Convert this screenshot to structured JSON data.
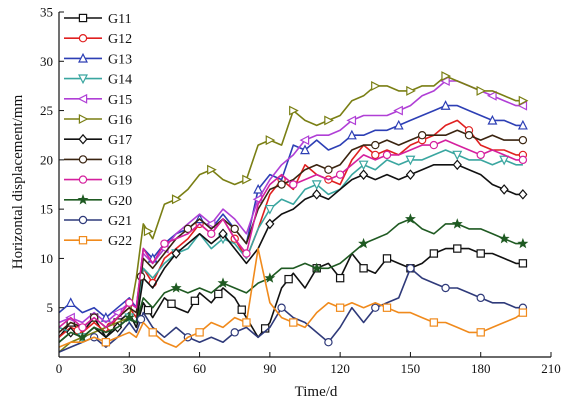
{
  "chart_data": {
    "type": "line",
    "xlabel": "Time/d",
    "ylabel": "Horizontal displacement/mm",
    "xlim": [
      0,
      210
    ],
    "ylim": [
      0,
      35
    ],
    "xticks": [
      0,
      30,
      60,
      90,
      120,
      150,
      180,
      210
    ],
    "yticks": [
      5,
      10,
      15,
      20,
      25,
      30,
      35
    ],
    "grid": false,
    "legend_position": "top-left",
    "series": [
      {
        "name": "G11",
        "color": "#111111",
        "marker": "square",
        "x": [
          0,
          5,
          10,
          15,
          20,
          25,
          30,
          33,
          36,
          40,
          45,
          50,
          55,
          60,
          65,
          70,
          75,
          80,
          85,
          90,
          95,
          100,
          105,
          110,
          115,
          120,
          125,
          130,
          135,
          140,
          145,
          150,
          155,
          160,
          165,
          170,
          175,
          180,
          185,
          190,
          195,
          198
        ],
        "y": [
          2.0,
          3.5,
          2.5,
          4.0,
          2.0,
          3.5,
          4.5,
          3.0,
          5.5,
          4.0,
          6.0,
          5.0,
          4.5,
          6.5,
          5.5,
          7.0,
          6.0,
          4.0,
          2.0,
          3.5,
          7.0,
          8.5,
          7.0,
          9.0,
          9.5,
          8.0,
          10.5,
          9.0,
          8.5,
          10.0,
          9.5,
          9.0,
          9.5,
          10.5,
          11.0,
          11.0,
          11.0,
          10.5,
          10.5,
          10.0,
          9.5,
          9.5
        ],
        "markers_x": [
          5,
          15,
          25,
          38,
          48,
          58,
          68,
          78,
          88,
          98,
          110,
          120,
          130,
          140,
          150,
          160,
          170,
          180,
          198
        ]
      },
      {
        "name": "G12",
        "color": "#e02020",
        "marker": "circle",
        "x": [
          0,
          5,
          10,
          15,
          20,
          25,
          30,
          33,
          36,
          40,
          45,
          50,
          55,
          60,
          65,
          70,
          75,
          80,
          85,
          90,
          95,
          100,
          105,
          110,
          115,
          120,
          125,
          130,
          135,
          140,
          145,
          150,
          155,
          160,
          165,
          170,
          175,
          180,
          185,
          190,
          195,
          198
        ],
        "y": [
          2.0,
          3.0,
          2.5,
          3.5,
          2.5,
          4.0,
          5.0,
          4.0,
          9.0,
          7.5,
          10.0,
          11.0,
          12.0,
          13.5,
          12.5,
          14.0,
          12.0,
          10.0,
          13.0,
          16.5,
          18.0,
          17.0,
          19.5,
          18.5,
          18.0,
          17.5,
          20.0,
          21.5,
          20.5,
          21.0,
          20.5,
          21.5,
          22.0,
          22.5,
          23.5,
          24.0,
          23.0,
          21.5,
          21.0,
          21.0,
          20.5,
          20.5
        ],
        "markers_x": [
          8,
          22,
          40,
          60,
          75,
          95,
          115,
          135,
          155,
          175,
          198
        ]
      },
      {
        "name": "G13",
        "color": "#2d3fb5",
        "marker": "triangle-up",
        "x": [
          0,
          5,
          10,
          15,
          20,
          25,
          30,
          33,
          36,
          40,
          45,
          50,
          55,
          60,
          65,
          70,
          75,
          80,
          85,
          90,
          95,
          100,
          105,
          110,
          115,
          120,
          125,
          130,
          135,
          140,
          145,
          150,
          155,
          160,
          165,
          170,
          175,
          180,
          185,
          190,
          195,
          198
        ],
        "y": [
          4.5,
          5.5,
          4.5,
          5.0,
          4.0,
          5.0,
          6.0,
          5.0,
          11.0,
          10.0,
          11.5,
          12.5,
          13.0,
          14.0,
          13.0,
          14.5,
          13.0,
          11.5,
          17.0,
          18.5,
          18.0,
          21.5,
          21.0,
          22.0,
          21.0,
          21.5,
          22.5,
          22.5,
          23.0,
          23.0,
          23.5,
          24.0,
          24.5,
          25.0,
          25.5,
          25.5,
          25.0,
          24.5,
          24.0,
          24.0,
          23.5,
          23.5
        ],
        "markers_x": [
          5,
          20,
          40,
          60,
          85,
          105,
          125,
          145,
          165,
          185,
          198
        ]
      },
      {
        "name": "G14",
        "color": "#3aa6a0",
        "marker": "triangle-down",
        "x": [
          0,
          5,
          10,
          15,
          20,
          25,
          30,
          33,
          36,
          40,
          45,
          50,
          55,
          60,
          65,
          70,
          75,
          80,
          85,
          90,
          95,
          100,
          105,
          110,
          115,
          120,
          125,
          130,
          135,
          140,
          145,
          150,
          155,
          160,
          165,
          170,
          175,
          180,
          185,
          190,
          195,
          198
        ],
        "y": [
          3.0,
          2.5,
          2.0,
          3.0,
          2.0,
          3.0,
          4.0,
          3.5,
          9.0,
          8.0,
          9.5,
          10.5,
          11.0,
          12.5,
          11.0,
          12.0,
          11.5,
          10.0,
          13.0,
          15.0,
          16.0,
          15.5,
          17.0,
          17.5,
          16.5,
          17.0,
          18.5,
          19.5,
          19.0,
          20.0,
          19.5,
          20.0,
          20.0,
          20.5,
          21.0,
          20.5,
          20.0,
          20.0,
          19.5,
          20.0,
          19.5,
          19.5
        ],
        "markers_x": [
          10,
          30,
          50,
          70,
          90,
          110,
          130,
          150,
          170,
          190
        ]
      },
      {
        "name": "G15",
        "color": "#b03fd6",
        "marker": "triangle-left",
        "x": [
          0,
          5,
          10,
          15,
          20,
          25,
          30,
          33,
          36,
          40,
          45,
          50,
          55,
          60,
          65,
          70,
          75,
          80,
          85,
          90,
          95,
          100,
          105,
          110,
          115,
          120,
          125,
          130,
          135,
          140,
          145,
          150,
          155,
          160,
          165,
          170,
          175,
          180,
          185,
          190,
          195,
          198
        ],
        "y": [
          3.5,
          4.0,
          3.5,
          4.5,
          3.5,
          4.5,
          5.5,
          5.0,
          10.5,
          9.5,
          11.0,
          12.5,
          13.5,
          14.5,
          13.5,
          15.0,
          14.0,
          12.5,
          16.0,
          18.0,
          19.5,
          20.5,
          22.0,
          22.5,
          22.5,
          23.0,
          24.0,
          24.5,
          24.5,
          24.5,
          25.0,
          25.5,
          26.5,
          27.0,
          28.0,
          28.0,
          27.5,
          27.0,
          26.5,
          26.0,
          25.5,
          25.5
        ],
        "markers_x": [
          5,
          25,
          45,
          65,
          85,
          105,
          125,
          145,
          165,
          185,
          198
        ]
      },
      {
        "name": "G16",
        "color": "#7a7f14",
        "marker": "triangle-right",
        "x": [
          0,
          5,
          10,
          15,
          20,
          25,
          30,
          33,
          36,
          40,
          45,
          50,
          55,
          60,
          65,
          70,
          75,
          80,
          85,
          90,
          95,
          100,
          105,
          110,
          115,
          120,
          125,
          130,
          135,
          140,
          145,
          150,
          155,
          160,
          165,
          170,
          175,
          180,
          185,
          190,
          195,
          198
        ],
        "y": [
          0.5,
          1.5,
          2.0,
          2.5,
          3.0,
          3.5,
          4.0,
          8.0,
          13.5,
          12.0,
          15.5,
          16.0,
          17.0,
          18.5,
          19.0,
          18.0,
          17.5,
          18.0,
          21.5,
          22.0,
          21.5,
          25.0,
          24.0,
          23.5,
          24.0,
          24.5,
          26.0,
          26.5,
          27.5,
          27.5,
          27.0,
          27.0,
          27.5,
          27.5,
          28.5,
          28.0,
          27.5,
          27.0,
          27.0,
          26.5,
          26.0,
          26.0
        ],
        "markers_x": [
          38,
          50,
          65,
          80,
          90,
          100,
          115,
          135,
          150,
          165,
          180,
          198
        ]
      },
      {
        "name": "G17",
        "color": "#111111",
        "marker": "diamond",
        "x": [
          0,
          5,
          10,
          15,
          20,
          25,
          30,
          33,
          36,
          40,
          45,
          50,
          55,
          60,
          65,
          70,
          75,
          80,
          85,
          90,
          95,
          100,
          105,
          110,
          115,
          120,
          125,
          130,
          135,
          140,
          145,
          150,
          155,
          160,
          165,
          170,
          175,
          180,
          185,
          190,
          195,
          198
        ],
        "y": [
          1.5,
          2.5,
          2.0,
          3.0,
          2.0,
          3.0,
          4.0,
          3.5,
          8.0,
          7.0,
          9.0,
          10.5,
          11.5,
          12.5,
          11.5,
          12.5,
          11.0,
          9.5,
          11.0,
          13.5,
          14.5,
          15.0,
          16.0,
          16.5,
          16.0,
          17.0,
          18.0,
          18.5,
          18.0,
          18.5,
          18.0,
          18.5,
          19.0,
          19.5,
          19.5,
          19.5,
          19.0,
          18.5,
          17.5,
          17.0,
          16.5,
          16.5
        ],
        "markers_x": [
          5,
          25,
          50,
          70,
          90,
          110,
          130,
          150,
          170,
          190,
          198
        ]
      },
      {
        "name": "G18",
        "color": "#3a2410",
        "marker": "circle",
        "x": [
          0,
          5,
          10,
          15,
          20,
          25,
          30,
          33,
          36,
          40,
          45,
          50,
          55,
          60,
          65,
          70,
          75,
          80,
          85,
          90,
          95,
          100,
          105,
          110,
          115,
          120,
          125,
          130,
          135,
          140,
          145,
          150,
          155,
          160,
          165,
          170,
          175,
          180,
          185,
          190,
          195,
          198
        ],
        "y": [
          2.5,
          3.5,
          3.0,
          4.0,
          3.0,
          4.0,
          5.0,
          4.5,
          10.0,
          9.0,
          10.5,
          12.0,
          13.0,
          14.0,
          13.0,
          14.0,
          13.0,
          11.5,
          15.0,
          17.0,
          17.5,
          18.0,
          19.0,
          19.5,
          19.0,
          19.5,
          21.0,
          21.5,
          21.5,
          22.0,
          21.5,
          22.0,
          22.5,
          22.5,
          22.5,
          23.0,
          22.5,
          22.0,
          22.5,
          22.0,
          22.0,
          22.0
        ],
        "markers_x": [
          15,
          35,
          55,
          75,
          95,
          115,
          135,
          155,
          175,
          198
        ]
      },
      {
        "name": "G19",
        "color": "#d5209e",
        "marker": "circle",
        "x": [
          0,
          5,
          10,
          15,
          20,
          25,
          30,
          33,
          36,
          40,
          45,
          50,
          55,
          60,
          65,
          70,
          75,
          80,
          85,
          90,
          95,
          100,
          105,
          110,
          115,
          120,
          125,
          130,
          135,
          140,
          145,
          150,
          155,
          160,
          165,
          170,
          175,
          180,
          185,
          190,
          195,
          198
        ],
        "y": [
          3.0,
          4.0,
          3.0,
          4.0,
          3.0,
          4.0,
          5.5,
          5.0,
          11.0,
          9.5,
          11.5,
          12.0,
          12.5,
          13.5,
          12.5,
          14.0,
          12.0,
          10.5,
          15.5,
          17.5,
          18.5,
          17.5,
          18.0,
          18.5,
          18.0,
          18.5,
          19.5,
          20.5,
          20.0,
          20.5,
          20.5,
          21.0,
          21.5,
          21.5,
          22.0,
          21.5,
          21.0,
          20.5,
          21.0,
          20.5,
          20.0,
          20.0
        ],
        "markers_x": [
          10,
          30,
          45,
          65,
          80,
          100,
          120,
          140,
          160,
          180,
          198
        ]
      },
      {
        "name": "G20",
        "color": "#1f5a22",
        "marker": "star",
        "x": [
          0,
          5,
          10,
          15,
          20,
          25,
          30,
          33,
          36,
          40,
          45,
          50,
          55,
          60,
          65,
          70,
          75,
          80,
          85,
          90,
          95,
          100,
          105,
          110,
          115,
          120,
          125,
          130,
          135,
          140,
          145,
          150,
          155,
          160,
          165,
          170,
          175,
          180,
          185,
          190,
          195,
          198
        ],
        "y": [
          1.5,
          2.5,
          2.0,
          3.0,
          2.5,
          3.0,
          4.0,
          3.5,
          6.0,
          5.0,
          6.5,
          7.0,
          6.5,
          7.0,
          6.5,
          7.5,
          7.0,
          6.5,
          7.5,
          8.0,
          9.0,
          9.0,
          9.5,
          9.0,
          9.0,
          9.5,
          10.5,
          11.5,
          12.0,
          12.5,
          13.5,
          14.0,
          13.0,
          12.5,
          13.5,
          13.5,
          13.0,
          13.0,
          12.5,
          12.0,
          11.5,
          11.5
        ],
        "markers_x": [
          10,
          30,
          50,
          70,
          90,
          110,
          130,
          150,
          170,
          190,
          198
        ]
      },
      {
        "name": "G21",
        "color": "#2f3a7a",
        "marker": "circle",
        "x": [
          0,
          5,
          10,
          15,
          20,
          25,
          30,
          33,
          36,
          40,
          45,
          50,
          55,
          60,
          65,
          70,
          75,
          80,
          85,
          90,
          95,
          100,
          105,
          110,
          115,
          120,
          125,
          130,
          135,
          140,
          145,
          150,
          155,
          160,
          165,
          170,
          175,
          180,
          185,
          190,
          195,
          198
        ],
        "y": [
          0.5,
          1.0,
          1.5,
          2.0,
          1.0,
          2.0,
          3.5,
          2.5,
          4.5,
          3.0,
          2.0,
          3.0,
          2.0,
          1.5,
          2.0,
          1.5,
          2.5,
          3.0,
          2.0,
          3.0,
          5.0,
          4.0,
          3.5,
          2.5,
          1.5,
          3.0,
          5.0,
          3.5,
          5.0,
          5.5,
          6.0,
          9.0,
          8.0,
          7.5,
          7.0,
          7.0,
          6.5,
          6.0,
          5.5,
          5.5,
          5.0,
          5.0
        ],
        "markers_x": [
          15,
          35,
          55,
          75,
          95,
          115,
          135,
          150,
          165,
          180,
          198
        ]
      },
      {
        "name": "G22",
        "color": "#f08a1c",
        "marker": "square",
        "x": [
          0,
          5,
          10,
          15,
          20,
          25,
          30,
          33,
          36,
          40,
          45,
          50,
          55,
          60,
          65,
          70,
          75,
          80,
          85,
          90,
          95,
          100,
          105,
          110,
          115,
          120,
          125,
          130,
          135,
          140,
          145,
          150,
          155,
          160,
          165,
          170,
          175,
          180,
          185,
          190,
          195,
          198
        ],
        "y": [
          1.0,
          1.5,
          1.5,
          2.0,
          1.5,
          2.0,
          2.5,
          2.0,
          3.5,
          2.5,
          1.5,
          1.0,
          2.0,
          2.5,
          3.5,
          3.0,
          4.0,
          3.5,
          11.0,
          5.5,
          4.0,
          3.5,
          3.0,
          4.5,
          5.5,
          5.0,
          5.5,
          5.0,
          5.5,
          5.0,
          4.5,
          4.5,
          4.0,
          3.5,
          3.5,
          3.0,
          2.5,
          2.5,
          3.0,
          3.5,
          4.0,
          4.5
        ],
        "markers_x": [
          20,
          40,
          60,
          80,
          100,
          120,
          140,
          160,
          180,
          198
        ]
      }
    ]
  }
}
